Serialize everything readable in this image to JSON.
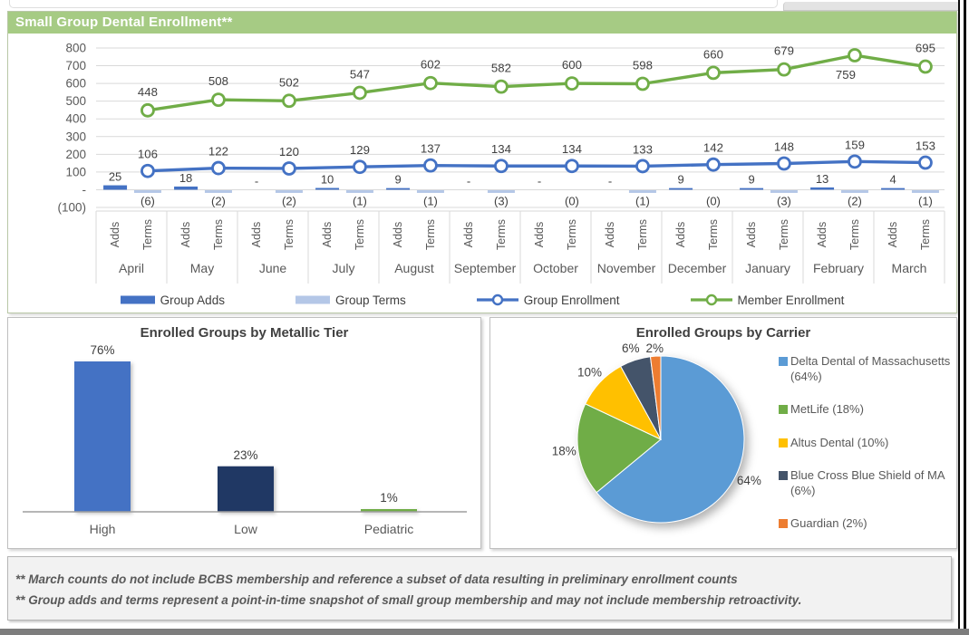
{
  "chart_data": [
    {
      "id": "enrollment",
      "type": "combo",
      "title": "Small Group Dental Enrollment**",
      "title_bg": "#A6CB84",
      "title_color": "#FFFFFF",
      "categories": [
        "April",
        "May",
        "June",
        "July",
        "August",
        "September",
        "October",
        "November",
        "December",
        "January",
        "February",
        "March"
      ],
      "category_sublabels": [
        "Adds",
        "Terms"
      ],
      "ylim": [
        -100,
        800
      ],
      "ytick_step": 100,
      "ytick_labels": [
        "800",
        "700",
        "600",
        "500",
        "400",
        "300",
        "200",
        "100",
        "-",
        "(100)"
      ],
      "grid": true,
      "legend_position": "bottom",
      "series": [
        {
          "name": "Group Adds",
          "type": "bar",
          "color": "#4472C4",
          "values": [
            25,
            18,
            0,
            10,
            9,
            0,
            0,
            0,
            9,
            9,
            13,
            4
          ],
          "data_labels": [
            "25",
            "18",
            "-",
            "10",
            "9",
            "-",
            "-",
            "-",
            "9",
            "9",
            "13",
            "4"
          ]
        },
        {
          "name": "Group Terms",
          "type": "bar",
          "color": "#B4C7E7",
          "values": [
            -6,
            -2,
            -2,
            -1,
            -1,
            -3,
            0,
            -1,
            0,
            -3,
            -2,
            -1
          ],
          "data_labels": [
            "(6)",
            "(2)",
            "(2)",
            "(1)",
            "(1)",
            "(3)",
            "(0)",
            "(1)",
            "(0)",
            "(3)",
            "(2)",
            "(1)"
          ]
        },
        {
          "name": "Group Enrollment",
          "type": "line",
          "marker": "circle",
          "color": "#4472C4",
          "values": [
            106,
            122,
            120,
            129,
            137,
            134,
            134,
            133,
            142,
            148,
            159,
            153
          ]
        },
        {
          "name": "Member Enrollment",
          "type": "line",
          "marker": "circle",
          "color": "#70AD47",
          "values": [
            448,
            508,
            502,
            547,
            602,
            582,
            600,
            598,
            660,
            679,
            759,
            695
          ],
          "below_label_indices": [
            10
          ]
        }
      ]
    },
    {
      "id": "metallic_tier",
      "type": "bar",
      "title": "Enrolled Groups by Metallic Tier",
      "categories": [
        "High",
        "Low",
        "Pediatric"
      ],
      "values": [
        76,
        23,
        1
      ],
      "data_labels": [
        "76%",
        "23%",
        "1%"
      ],
      "colors": [
        "#4472C4",
        "#203864",
        "#70AD47"
      ],
      "ylim": [
        0,
        80
      ],
      "grid": false
    },
    {
      "id": "carrier",
      "type": "pie",
      "title": "Enrolled Groups by Carrier",
      "legend_position": "right",
      "slices": [
        {
          "label": "Delta Dental of Massachusetts (64%)",
          "value": 64,
          "pct_label": "64%",
          "color": "#5B9BD5"
        },
        {
          "label": "MetLife (18%)",
          "value": 18,
          "pct_label": "18%",
          "color": "#70AD47"
        },
        {
          "label": "Altus Dental (10%)",
          "value": 10,
          "pct_label": "10%",
          "color": "#FFC000"
        },
        {
          "label": "Blue Cross Blue Shield of MA (6%)",
          "value": 6,
          "pct_label": "6%",
          "color": "#44546A"
        },
        {
          "label": "Guardian (2%)",
          "value": 2,
          "pct_label": "2%",
          "color": "#ED7D31"
        }
      ]
    }
  ],
  "footnotes": [
    "** March counts do not include BCBS membership and reference a subset of data resulting in preliminary enrollment counts",
    "** Group adds and terms represent a point-in-time snapshot of small group membership and may not include membership retroactivity."
  ]
}
